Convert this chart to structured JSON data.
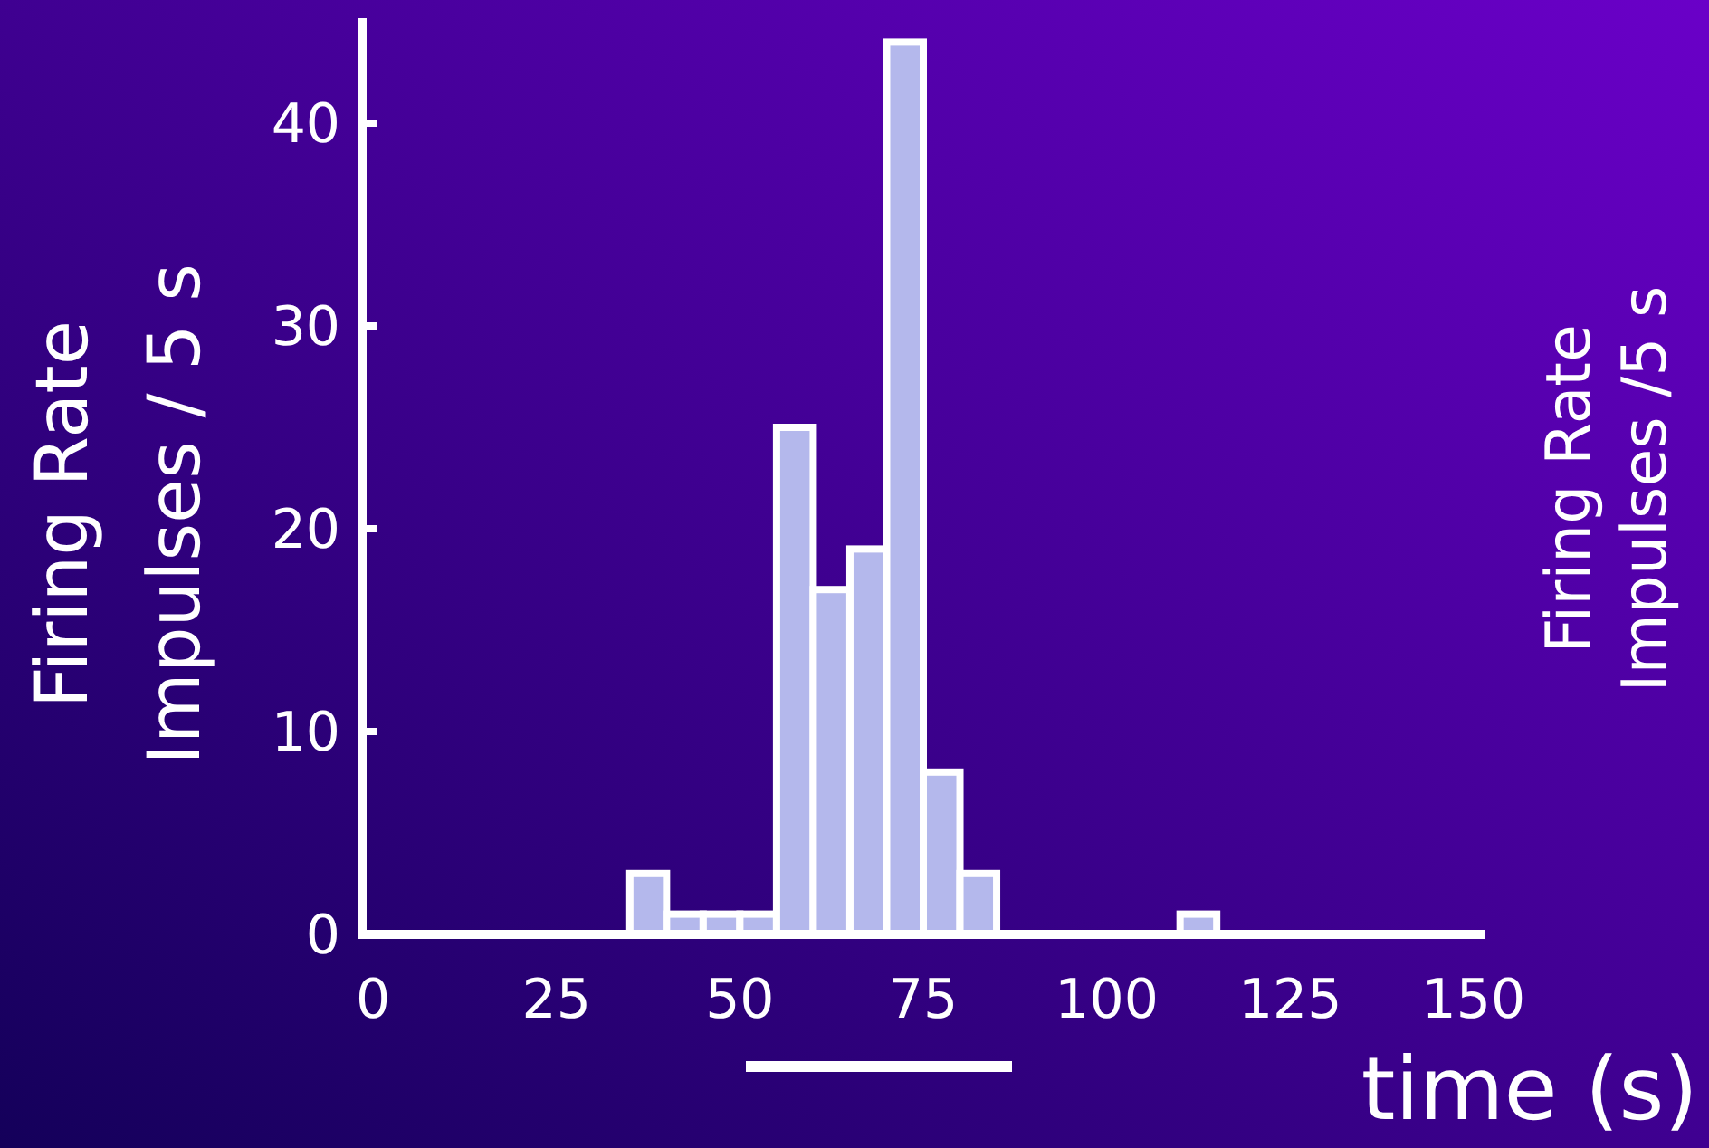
{
  "chart_data": {
    "type": "histogram",
    "ylabel": "Firing Rate\nImpulses / 5 s",
    "xlabel": "time (s)",
    "bins": [
      35,
      40,
      45,
      50,
      55,
      60,
      65,
      70,
      75,
      80,
      85,
      90,
      95,
      100,
      105,
      110,
      115
    ],
    "values": [
      3,
      1,
      1,
      1,
      25,
      17,
      19,
      44,
      8,
      3,
      0,
      0,
      0,
      0,
      0,
      1
    ],
    "color": "#b4b8ec",
    "xlim": [
      -1.5,
      151.5
    ],
    "xticks": [
      0,
      25,
      50,
      75,
      100,
      125,
      150
    ],
    "ylim": [
      0,
      45
    ],
    "yticks": [
      0,
      10,
      20,
      30,
      40
    ],
    "annotations": [
      "Firing Rate",
      "Impulses /5 s"
    ],
    "grid": false
  }
}
